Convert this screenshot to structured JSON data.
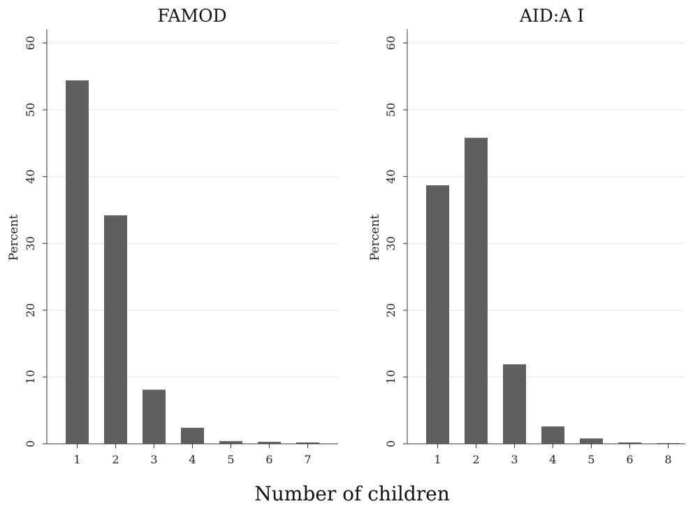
{
  "xlabel": "Number of children",
  "colors": {
    "bar": "#5f5f5f",
    "grid": "#e6e6e6",
    "axis": "#333333"
  },
  "chart_data": [
    {
      "type": "bar",
      "title": "FAMOD",
      "categories": [
        "1",
        "2",
        "3",
        "4",
        "5",
        "6",
        "7"
      ],
      "values": [
        54.4,
        34.2,
        8.1,
        2.4,
        0.4,
        0.3,
        0.2
      ],
      "ylabel": "Percent",
      "ylim": [
        0,
        60
      ],
      "yticks": [
        0,
        10,
        20,
        30,
        40,
        50,
        60
      ],
      "grid": true
    },
    {
      "type": "bar",
      "title": "AID:A I",
      "categories": [
        "1",
        "2",
        "3",
        "4",
        "5",
        "6",
        "8"
      ],
      "values": [
        38.7,
        45.8,
        11.9,
        2.6,
        0.8,
        0.2,
        0.1
      ],
      "ylabel": "Percent",
      "ylim": [
        0,
        60
      ],
      "yticks": [
        0,
        10,
        20,
        30,
        40,
        50,
        60
      ],
      "grid": true
    }
  ]
}
